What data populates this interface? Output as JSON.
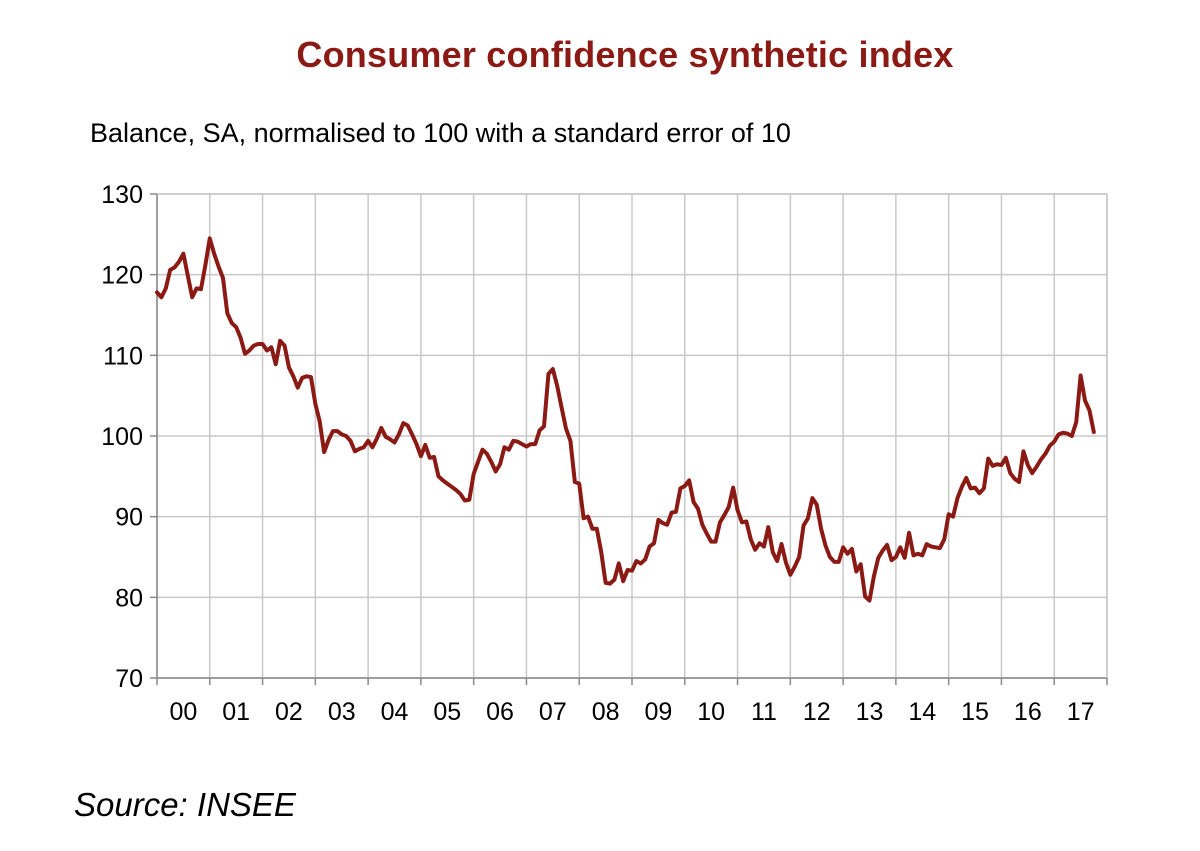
{
  "colors": {
    "line": "#8b1a14",
    "grid": "#c8c8c8",
    "axis": "#888888",
    "title": "#8b1a14"
  },
  "source": "Source: INSEE",
  "chart_data": {
    "type": "line",
    "title": "Consumer confidence synthetic index",
    "subtitle": "Balance, SA, normalised to 100 with a standard error of 10",
    "xlabel": "",
    "ylabel": "",
    "ylim": [
      70,
      130
    ],
    "yticks": [
      70,
      80,
      90,
      100,
      110,
      120,
      130
    ],
    "xticks": [
      "00",
      "01",
      "02",
      "03",
      "04",
      "05",
      "06",
      "07",
      "08",
      "09",
      "10",
      "11",
      "12",
      "13",
      "14",
      "15",
      "16",
      "17"
    ],
    "xrange": [
      2000.0,
      2017.958
    ],
    "grid": true,
    "legend": "none",
    "series": [
      {
        "x": [
          2000.0,
          2000.083,
          2000.167,
          2000.25,
          2000.333,
          2000.417,
          2000.5,
          2000.583,
          2000.667,
          2000.75,
          2000.833,
          2000.917,
          2001.0,
          2001.083,
          2001.167,
          2001.25,
          2001.333,
          2001.417,
          2001.5,
          2001.583,
          2001.667,
          2001.75,
          2001.833,
          2001.917,
          2002.0,
          2002.083,
          2002.167,
          2002.25,
          2002.333,
          2002.417,
          2002.5,
          2002.583,
          2002.667,
          2002.75,
          2002.833,
          2002.917,
          2003.0,
          2003.083,
          2003.167,
          2003.25,
          2003.333,
          2003.417,
          2003.5,
          2003.583,
          2003.667,
          2003.75,
          2003.833,
          2003.917,
          2004.0,
          2004.083,
          2004.167,
          2004.25,
          2004.333,
          2004.417,
          2004.5,
          2004.583,
          2004.667,
          2004.75,
          2004.833,
          2004.917,
          2005.0,
          2005.083,
          2005.167,
          2005.25,
          2005.333,
          2005.417,
          2005.5,
          2005.583,
          2005.667,
          2005.75,
          2005.833,
          2005.917,
          2006.0,
          2006.083,
          2006.167,
          2006.25,
          2006.333,
          2006.417,
          2006.5,
          2006.583,
          2006.667,
          2006.75,
          2006.833,
          2006.917,
          2007.0,
          2007.083,
          2007.167,
          2007.25,
          2007.333,
          2007.417,
          2007.5,
          2007.583,
          2007.667,
          2007.75,
          2007.833,
          2007.917,
          2008.0,
          2008.083,
          2008.167,
          2008.25,
          2008.333,
          2008.417,
          2008.5,
          2008.583,
          2008.667,
          2008.75,
          2008.833,
          2008.917,
          2009.0,
          2009.083,
          2009.167,
          2009.25,
          2009.333,
          2009.417,
          2009.5,
          2009.583,
          2009.667,
          2009.75,
          2009.833,
          2009.917,
          2010.0,
          2010.083,
          2010.167,
          2010.25,
          2010.333,
          2010.417,
          2010.5,
          2010.583,
          2010.667,
          2010.75,
          2010.833,
          2010.917,
          2011.0,
          2011.083,
          2011.167,
          2011.25,
          2011.333,
          2011.417,
          2011.5,
          2011.583,
          2011.667,
          2011.75,
          2011.833,
          2011.917,
          2012.0,
          2012.083,
          2012.167,
          2012.25,
          2012.333,
          2012.417,
          2012.5,
          2012.583,
          2012.667,
          2012.75,
          2012.833,
          2012.917,
          2013.0,
          2013.083,
          2013.167,
          2013.25,
          2013.333,
          2013.417,
          2013.5,
          2013.583,
          2013.667,
          2013.75,
          2013.833,
          2013.917,
          2014.0,
          2014.083,
          2014.167,
          2014.25,
          2014.333,
          2014.417,
          2014.5,
          2014.583,
          2014.667,
          2014.75,
          2014.833,
          2014.917,
          2015.0,
          2015.083,
          2015.167,
          2015.25,
          2015.333,
          2015.417,
          2015.5,
          2015.583,
          2015.667,
          2015.75,
          2015.833,
          2015.917,
          2016.0,
          2016.083,
          2016.167,
          2016.25,
          2016.333,
          2016.417,
          2016.5,
          2016.583,
          2016.667,
          2016.75,
          2016.833,
          2016.917,
          2017.0,
          2017.083,
          2017.167,
          2017.25,
          2017.333,
          2017.417,
          2017.5,
          2017.583,
          2017.667,
          2017.75
        ],
        "values": [
          117.8,
          117.2,
          118.3,
          120.6,
          120.9,
          121.6,
          122.6,
          119.9,
          117.2,
          118.3,
          118.2,
          121.2,
          124.5,
          122.6,
          121.0,
          119.6,
          115.2,
          114.0,
          113.5,
          112.2,
          110.2,
          110.6,
          111.2,
          111.4,
          111.4,
          110.6,
          111.0,
          108.9,
          111.8,
          111.2,
          108.5,
          107.4,
          106.0,
          107.2,
          107.4,
          107.3,
          104.0,
          101.8,
          98.0,
          99.5,
          100.6,
          100.6,
          100.2,
          100.0,
          99.4,
          98.1,
          98.4,
          98.6,
          99.4,
          98.6,
          99.7,
          101.0,
          99.9,
          99.6,
          99.2,
          100.2,
          101.6,
          101.3,
          100.2,
          99.0,
          97.5,
          98.9,
          97.3,
          97.4,
          95.0,
          94.5,
          94.1,
          93.7,
          93.3,
          92.8,
          92.0,
          92.1,
          95.3,
          96.8,
          98.3,
          97.8,
          96.8,
          95.6,
          96.5,
          98.6,
          98.3,
          99.4,
          99.3,
          99.0,
          98.7,
          99.0,
          99.0,
          100.7,
          101.2,
          107.7,
          108.3,
          106.2,
          103.5,
          100.9,
          99.4,
          94.3,
          94.1,
          89.8,
          90.0,
          88.5,
          88.5,
          85.6,
          81.8,
          81.7,
          82.2,
          84.2,
          82.0,
          83.4,
          83.3,
          84.5,
          84.2,
          84.7,
          86.3,
          86.7,
          89.6,
          89.2,
          89.0,
          90.5,
          90.6,
          93.5,
          93.8,
          94.5,
          91.8,
          91.0,
          89.0,
          87.9,
          86.9,
          86.9,
          89.3,
          90.2,
          91.2,
          93.6,
          90.8,
          89.3,
          89.4,
          87.2,
          85.9,
          86.7,
          86.3,
          88.7,
          85.6,
          84.5,
          86.6,
          84.3,
          82.8,
          83.8,
          85.0,
          88.9,
          89.8,
          92.3,
          91.5,
          88.5,
          86.4,
          85.0,
          84.4,
          84.4,
          86.2,
          85.4,
          86.0,
          83.2,
          84.1,
          80.1,
          79.6,
          82.6,
          84.9,
          85.8,
          86.5,
          84.6,
          85.0,
          86.2,
          84.9,
          88.0,
          85.2,
          85.4,
          85.2,
          86.6,
          86.3,
          86.2,
          86.1,
          87.2,
          90.3,
          90.0,
          92.3,
          93.7,
          94.8,
          93.5,
          93.6,
          92.9,
          93.5,
          97.2,
          96.3,
          96.5,
          96.4,
          97.3,
          95.4,
          94.7,
          94.3,
          98.1,
          96.4,
          95.4,
          96.2,
          97.1,
          97.8,
          98.8,
          99.3,
          100.2,
          100.4,
          100.3,
          100.0,
          101.7,
          107.5,
          104.4,
          103.2,
          100.5
        ]
      }
    ]
  }
}
